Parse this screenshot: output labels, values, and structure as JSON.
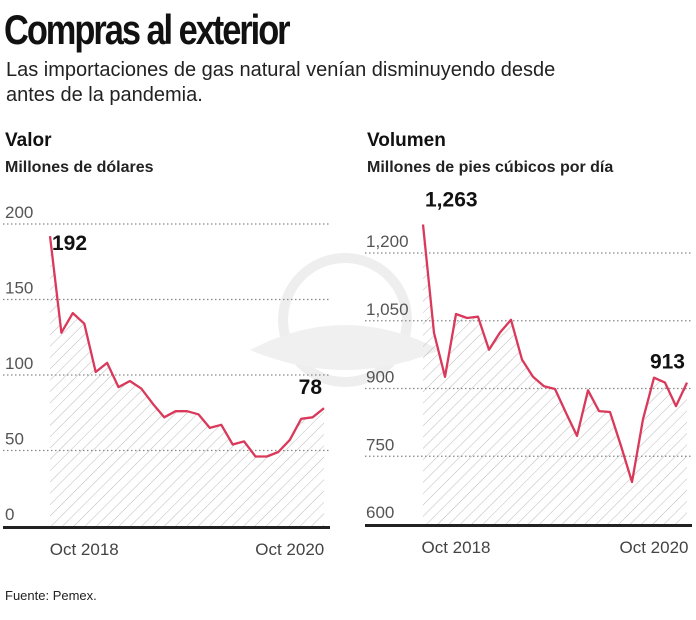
{
  "header": {
    "title": "Compras al exterior",
    "subtitle": "Las importaciones de gas natural venían disminuyendo desde antes de la pandemia."
  },
  "source": "Fuente: Pemex.",
  "colors": {
    "line": "#d9395a",
    "grid": "#888888",
    "hatch": "#bbbbbb"
  },
  "chart_data": [
    {
      "type": "area",
      "title": "Valor",
      "ylabel": "Millones de dólares",
      "ylim": [
        0,
        200
      ],
      "yticks": [
        0,
        50,
        100,
        150,
        200
      ],
      "ytick_labels": [
        "0",
        "50",
        "100",
        "150",
        "200"
      ],
      "xticks": [
        {
          "index": 3,
          "label": "Oct 2018"
        },
        {
          "index": 21,
          "label": "Oct 2020"
        }
      ],
      "grid": true,
      "values": [
        192,
        128,
        141,
        134,
        102,
        108,
        92,
        96,
        91,
        81,
        72,
        76,
        76,
        74,
        65,
        67,
        54,
        56,
        46,
        46,
        49,
        57,
        71,
        72,
        78
      ],
      "annotations": [
        {
          "index": 0,
          "label": "192"
        },
        {
          "index": 24,
          "label": "78"
        }
      ]
    },
    {
      "type": "area",
      "title": "Volumen",
      "ylabel": "Millones de pies cúbicos por día",
      "ylim": [
        600,
        1263
      ],
      "yticks": [
        600,
        750,
        900,
        1050,
        1200
      ],
      "ytick_labels": [
        "600",
        "750",
        "900",
        "1,050",
        "1,200"
      ],
      "xticks": [
        {
          "index": 3,
          "label": "Oct 2018"
        },
        {
          "index": 21,
          "label": "Oct 2020"
        }
      ],
      "grid": true,
      "values": [
        1263,
        1023,
        926,
        1065,
        1056,
        1059,
        986,
        1024,
        1052,
        964,
        926,
        905,
        899,
        846,
        795,
        896,
        850,
        848,
        773,
        693,
        832,
        924,
        913,
        861,
        913
      ],
      "annotations": [
        {
          "index": 0,
          "label": "1,263"
        },
        {
          "index": 24,
          "label": "913"
        }
      ]
    }
  ]
}
